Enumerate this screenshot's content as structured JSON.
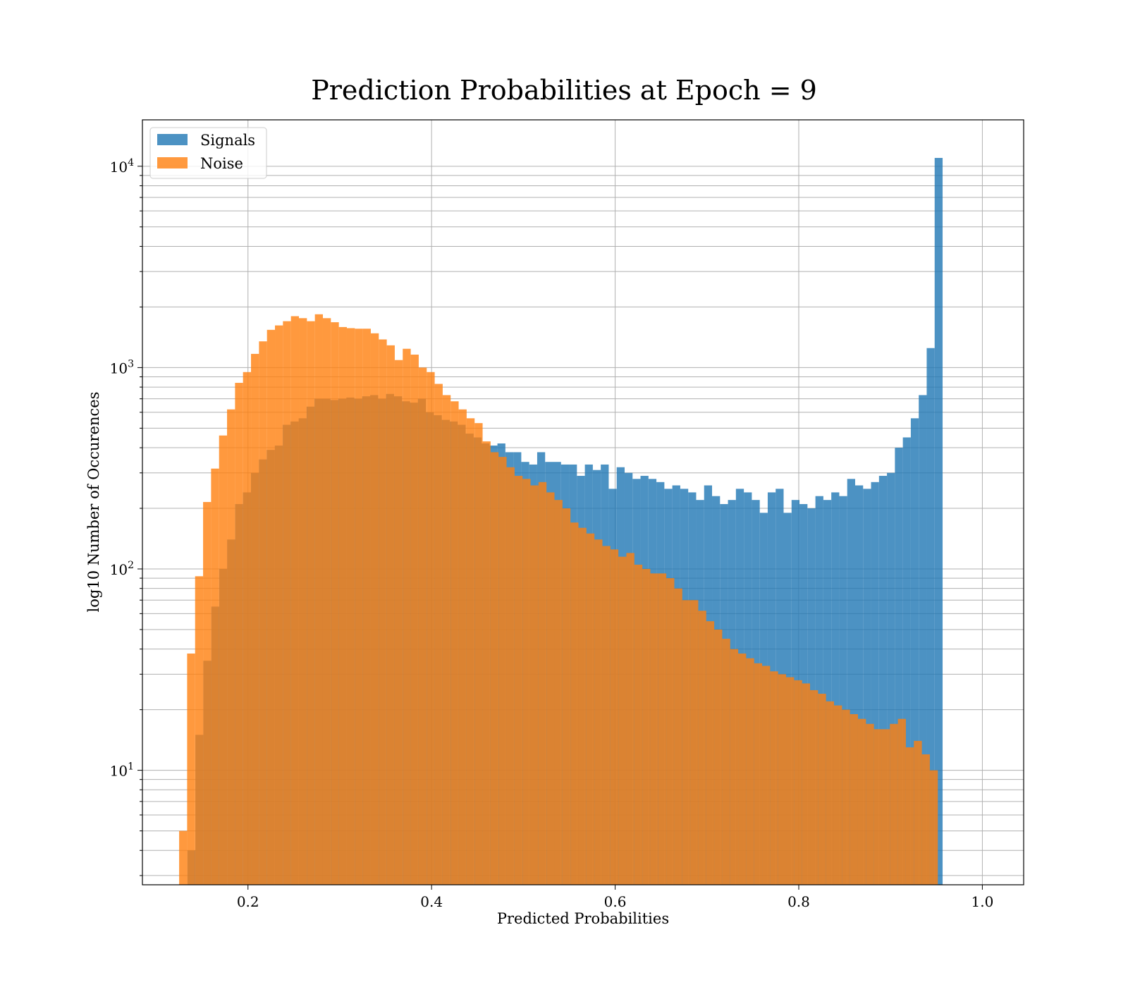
{
  "chart_data": {
    "type": "bar",
    "subtype": "histogram",
    "title": "Prediction Probabilities at Epoch = 9",
    "xlabel": "Predicted Probabilities",
    "ylabel": "log10 Number of Occurences",
    "xlim": [
      0.085,
      1.045
    ],
    "ylim": [
      2.7,
      17000
    ],
    "yscale": "log",
    "grid": true,
    "legend_position": "upper-left",
    "xticks": [
      {
        "value": 0.2,
        "label": "0.2"
      },
      {
        "value": 0.4,
        "label": "0.4"
      },
      {
        "value": 0.6,
        "label": "0.6"
      },
      {
        "value": 0.8,
        "label": "0.8"
      },
      {
        "value": 1.0,
        "label": "1.0"
      }
    ],
    "yticks": [
      {
        "value": 10,
        "base": "10",
        "exp": "1"
      },
      {
        "value": 100,
        "base": "10",
        "exp": "2"
      },
      {
        "value": 1000,
        "base": "10",
        "exp": "3"
      },
      {
        "value": 10000,
        "base": "10",
        "exp": "4"
      }
    ],
    "series": [
      {
        "name": "Signals",
        "color": "#1f77b4",
        "opacity": 0.8,
        "x_start": 0.134,
        "bin_width": 0.00866,
        "values": [
          4,
          15,
          35,
          65,
          100,
          140,
          210,
          240,
          300,
          350,
          390,
          410,
          520,
          540,
          560,
          640,
          700,
          700,
          690,
          700,
          710,
          700,
          720,
          730,
          700,
          740,
          720,
          680,
          670,
          700,
          600,
          580,
          550,
          540,
          520,
          470,
          450,
          420,
          410,
          420,
          380,
          380,
          340,
          330,
          380,
          340,
          340,
          330,
          330,
          290,
          330,
          310,
          330,
          250,
          320,
          300,
          280,
          290,
          280,
          270,
          250,
          260,
          250,
          240,
          220,
          260,
          230,
          210,
          220,
          250,
          240,
          220,
          190,
          240,
          250,
          190,
          220,
          210,
          200,
          230,
          220,
          240,
          230,
          280,
          260,
          250,
          270,
          290,
          300,
          400,
          450,
          560,
          730,
          1250,
          11000
        ]
      },
      {
        "name": "Noise",
        "color": "#ff7f0e",
        "opacity": 0.8,
        "x_start": 0.125,
        "bin_width": 0.0087,
        "values": [
          5,
          38,
          92,
          215,
          315,
          460,
          620,
          840,
          950,
          1170,
          1350,
          1540,
          1620,
          1700,
          1800,
          1760,
          1700,
          1840,
          1760,
          1680,
          1590,
          1570,
          1560,
          1560,
          1480,
          1380,
          1290,
          1090,
          1240,
          1160,
          1000,
          950,
          830,
          730,
          680,
          620,
          560,
          530,
          430,
          380,
          360,
          320,
          290,
          280,
          260,
          270,
          240,
          220,
          200,
          170,
          160,
          150,
          140,
          130,
          125,
          115,
          120,
          105,
          100,
          95,
          95,
          90,
          80,
          70,
          70,
          62,
          55,
          50,
          45,
          40,
          38,
          36,
          34,
          33,
          31,
          30,
          29,
          28,
          27,
          25,
          24,
          22,
          21,
          20,
          19,
          18,
          17,
          16,
          16,
          17,
          18,
          13,
          14,
          12,
          10
        ]
      }
    ]
  }
}
